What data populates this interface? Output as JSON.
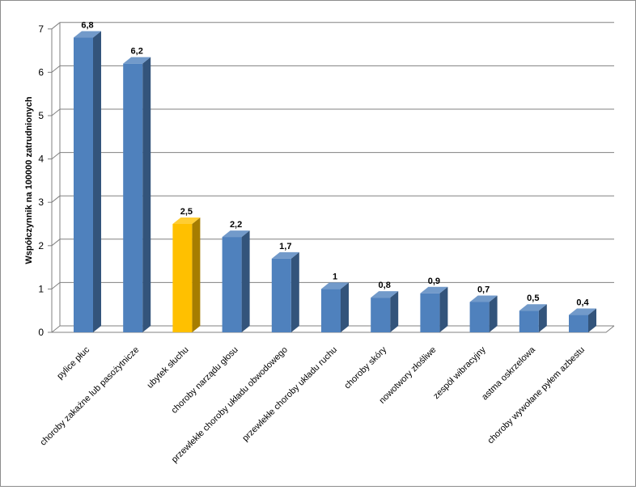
{
  "chart_data": {
    "type": "bar",
    "ylabel": "Współczynnik  na  100000 zatrudnionych",
    "ylim": [
      0,
      7
    ],
    "yticks": [
      "0",
      "1",
      "2",
      "3",
      "4",
      "5",
      "6",
      "7"
    ],
    "grid": true,
    "categories": [
      "pylice płuc",
      "choroby zakaźne lub pasożytnicze",
      "ubytek słuchu",
      "choroby narządu głosu",
      "przewlekłe choroby układu obwodowego",
      "przewlekłe choroby układu ruchu",
      "choroby skóry",
      "nowotwory złośliwe",
      "zespół wibracyjny",
      "astma oskrzelowa",
      "choroby wywołane pyłem azbestu"
    ],
    "values": [
      6.8,
      6.2,
      2.5,
      2.2,
      1.7,
      1,
      0.8,
      0.9,
      0.7,
      0.5,
      0.4
    ],
    "data_labels": [
      "6,8",
      "6,2",
      "2,5",
      "2,2",
      "1,7",
      "1",
      "0,8",
      "0,9",
      "0,7",
      "0,5",
      "0,4"
    ],
    "colors": {
      "default_bar": "#4f81bd",
      "highlight_bar": "#ffc000",
      "grid": "#808080"
    },
    "highlight_index": 2
  }
}
